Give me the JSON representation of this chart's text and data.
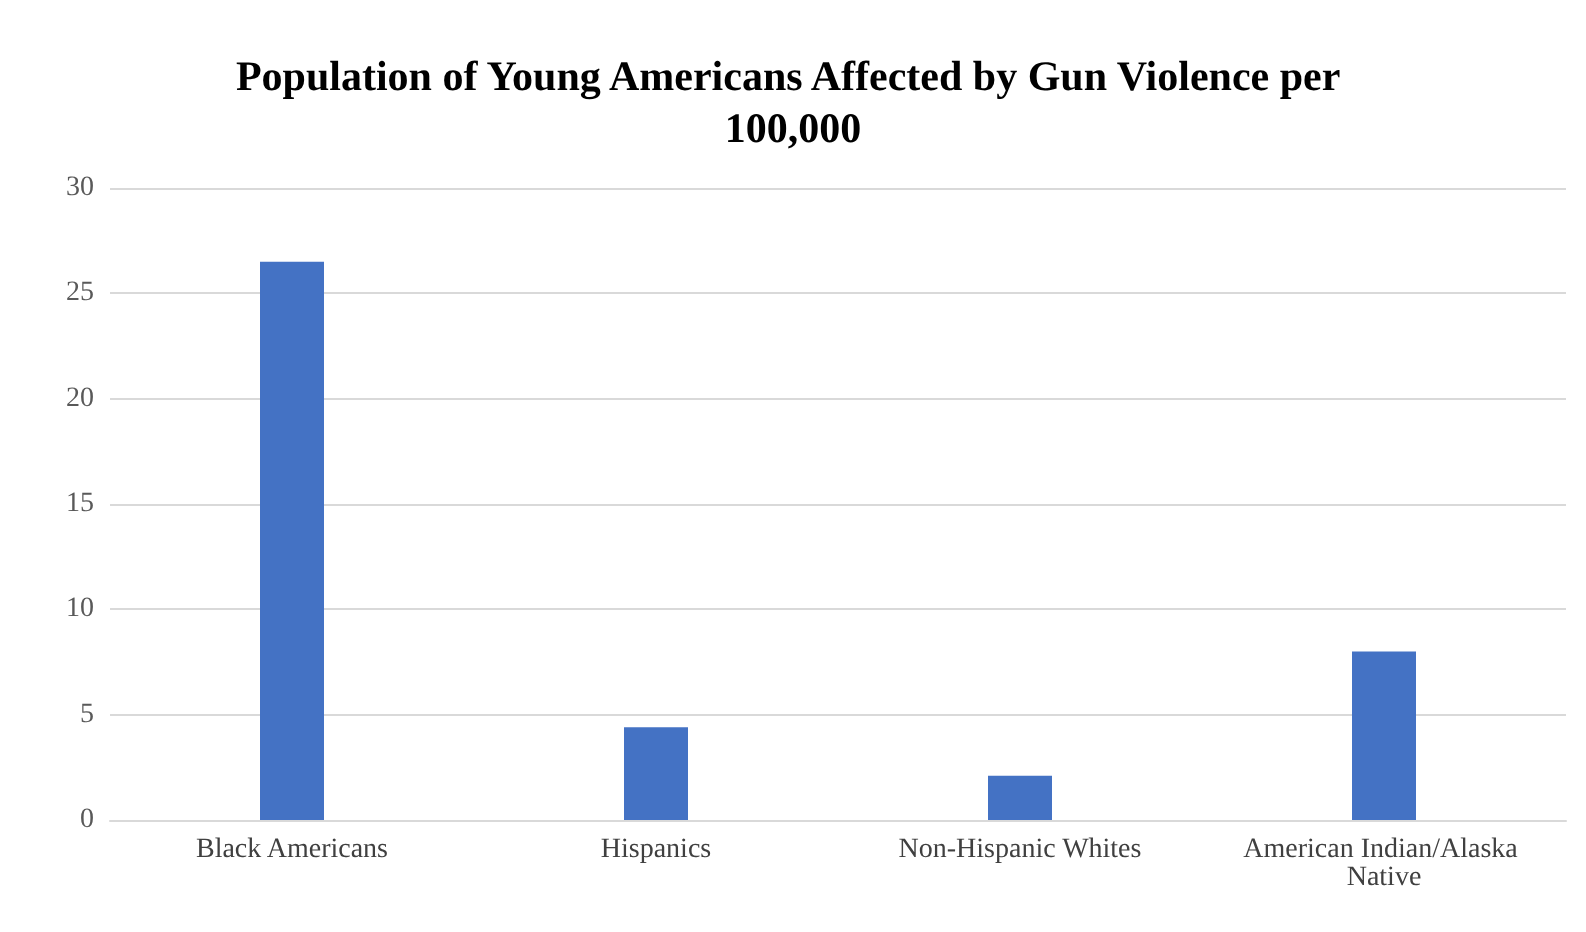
{
  "chart_data": {
    "type": "bar",
    "title": "Population of Young Americans Affected by Gun Violence per 100,000",
    "categories": [
      "Black Americans",
      "Hispanics",
      "Non-Hispanic Whites",
      "American Indian/Alaska Native"
    ],
    "values": [
      26.5,
      4.4,
      2.1,
      8.0
    ],
    "color": "#4472c4",
    "ylim": [
      0,
      30
    ],
    "yticks": [
      0,
      5,
      10,
      15,
      20,
      25,
      30
    ],
    "grid": "y"
  }
}
